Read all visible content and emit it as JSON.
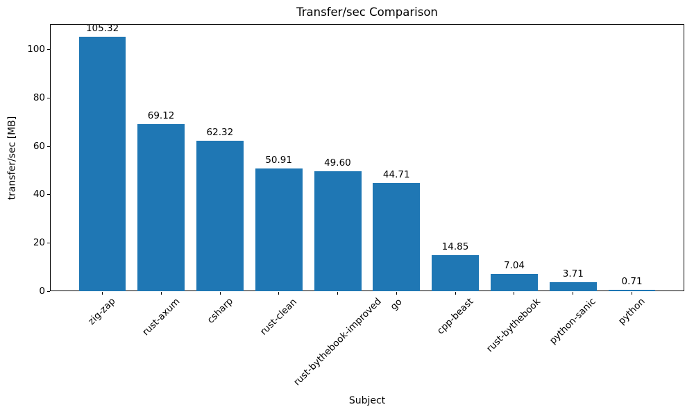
{
  "chart_data": {
    "type": "bar",
    "title": "Transfer/sec Comparison",
    "xlabel": "Subject",
    "ylabel": "transfer/sec [MB]",
    "categories": [
      "zig-zap",
      "rust-axum",
      "csharp",
      "rust-clean",
      "rust-bythebook-improved",
      "go",
      "cpp-beast",
      "rust-bythebook",
      "python-sanic",
      "python"
    ],
    "values": [
      105.32,
      69.12,
      62.32,
      50.91,
      49.6,
      44.71,
      14.85,
      7.04,
      3.71,
      0.71
    ],
    "value_labels": [
      "105.32",
      "69.12",
      "62.32",
      "50.91",
      "49.60",
      "44.71",
      "14.85",
      "7.04",
      "3.71",
      "0.71"
    ],
    "yticks": [
      0,
      20,
      40,
      60,
      80,
      100
    ],
    "ylim": [
      0,
      110.6
    ],
    "bar_color": "#1f77b4",
    "axis_color": "#000000",
    "grid": false,
    "legend": null,
    "x_tick_rotation_deg": 45,
    "bar_width_fraction": 0.8
  }
}
